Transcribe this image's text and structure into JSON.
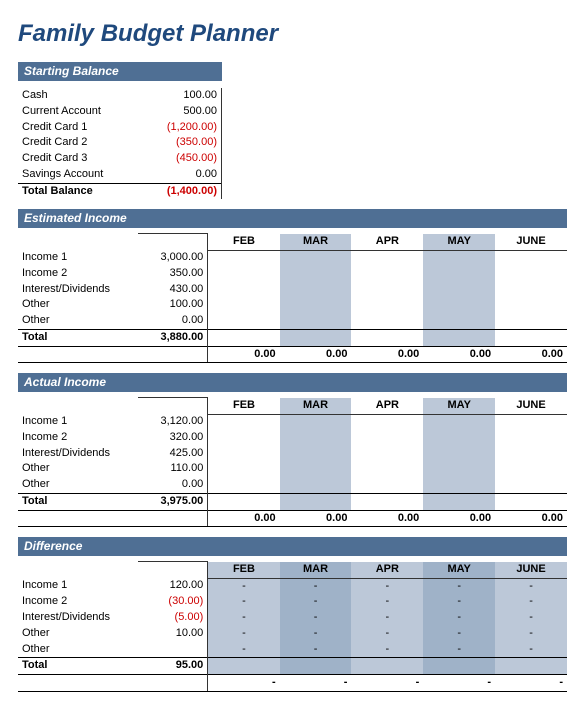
{
  "title": "Family Budget Planner",
  "colors": {
    "header_bg": "#4f6f94",
    "header_text": "#ffffff",
    "title_color": "#1f497d",
    "negative": "#cc0000",
    "shaded": "#bcc8d8",
    "border": "#333333",
    "text": "#000000",
    "background": "#ffffff"
  },
  "months": [
    "FEB",
    "MAR",
    "APR",
    "MAY",
    "JUNE"
  ],
  "starting_balance": {
    "header": "Starting Balance",
    "rows": [
      {
        "label": "Cash",
        "value": "100.00",
        "neg": false
      },
      {
        "label": "Current Account",
        "value": "500.00",
        "neg": false
      },
      {
        "label": "Credit Card 1",
        "value": "(1,200.00)",
        "neg": true
      },
      {
        "label": "Credit Card 2",
        "value": "(350.00)",
        "neg": true
      },
      {
        "label": "Credit Card 3",
        "value": "(450.00)",
        "neg": true
      },
      {
        "label": "Savings Account",
        "value": "0.00",
        "neg": false
      }
    ],
    "total_label": "Total Balance",
    "total_value": "(1,400.00)",
    "total_neg": true
  },
  "estimated_income": {
    "header": "Estimated Income",
    "rows": [
      {
        "label": "Income 1",
        "value": "3,000.00"
      },
      {
        "label": "Income 2",
        "value": "350.00"
      },
      {
        "label": "Interest/Dividends",
        "value": "430.00"
      },
      {
        "label": "Other",
        "value": "100.00"
      },
      {
        "label": "Other",
        "value": "0.00"
      }
    ],
    "total_label": "Total",
    "total_value": "3,880.00",
    "month_totals": [
      "0.00",
      "0.00",
      "0.00",
      "0.00",
      "0.00"
    ]
  },
  "actual_income": {
    "header": "Actual Income",
    "rows": [
      {
        "label": "Income 1",
        "value": "3,120.00"
      },
      {
        "label": "Income 2",
        "value": "320.00"
      },
      {
        "label": "Interest/Dividends",
        "value": "425.00"
      },
      {
        "label": "Other",
        "value": "110.00"
      },
      {
        "label": "Other",
        "value": "0.00"
      }
    ],
    "total_label": "Total",
    "total_value": "3,975.00",
    "month_totals": [
      "0.00",
      "0.00",
      "0.00",
      "0.00",
      "0.00"
    ]
  },
  "difference": {
    "header": "Difference",
    "rows": [
      {
        "label": "Income 1",
        "value": "120.00",
        "neg": false
      },
      {
        "label": "Income 2",
        "value": "(30.00)",
        "neg": true
      },
      {
        "label": "Interest/Dividends",
        "value": "(5.00)",
        "neg": true
      },
      {
        "label": "Other",
        "value": "10.00",
        "neg": false
      },
      {
        "label": "Other",
        "value": "",
        "neg": false
      }
    ],
    "total_label": "Total",
    "total_value": "95.00",
    "dash": "-",
    "month_totals": [
      "-",
      "-",
      "-",
      "-",
      "-"
    ]
  }
}
